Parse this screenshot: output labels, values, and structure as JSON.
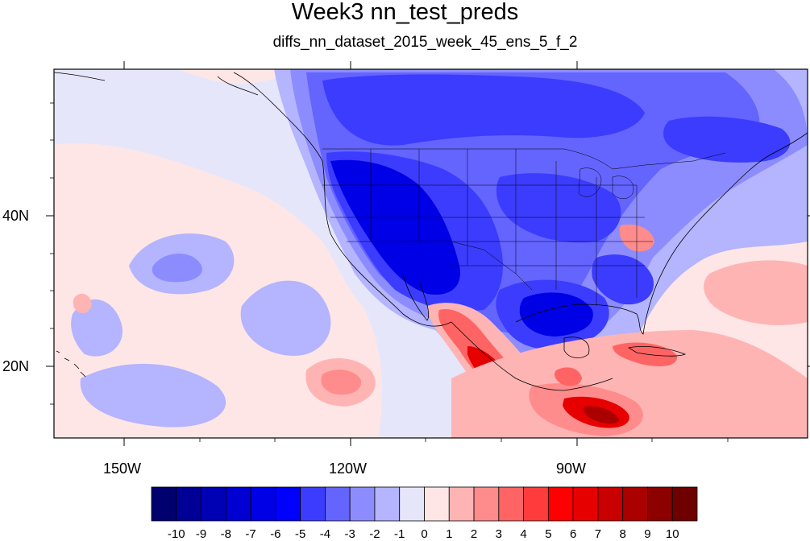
{
  "title": "Week3 nn_test_preds",
  "subtitle": "diffs_nn_dataset_2015_week_45_ens_5_f_2",
  "map": {
    "lon_labels": [
      "150W",
      "120W",
      "90W"
    ],
    "lat_labels": [
      "40N",
      "20N"
    ],
    "projection": "cylindrical equidistant",
    "features": [
      "coastlines",
      "US state boundaries",
      "country borders",
      "Great Lakes"
    ]
  },
  "colorbar": {
    "levels": [
      "-10",
      "-9",
      "-8",
      "-7",
      "-6",
      "-5",
      "-4",
      "-3",
      "-2",
      "-1",
      "0",
      "1",
      "2",
      "3",
      "4",
      "5",
      "6",
      "7",
      "8",
      "9",
      "10"
    ],
    "colors": [
      "#00006e",
      "#000096",
      "#0000b4",
      "#0000d2",
      "#0000e6",
      "#0000ff",
      "#3c3cff",
      "#6464ff",
      "#8c8cff",
      "#b4b4ff",
      "#e6e6fa",
      "#ffe6e6",
      "#ffb4b4",
      "#ff8c8c",
      "#ff6464",
      "#ff3c3c",
      "#ff0000",
      "#e60000",
      "#c80000",
      "#aa0000",
      "#8c0000",
      "#6e0000"
    ]
  },
  "field_colors": {
    "background": "#e6e6fa",
    "light_red": "#ffe6e6",
    "mid_red": "#ffb4b4",
    "light_blue": "#b4b4ff",
    "mid_blue": "#8c8cff",
    "blue": "#6464ff",
    "dark_blue": "#3c3cff",
    "deep_blue": "#0000e6",
    "red": "#ff6464",
    "dark_red": "#e60000",
    "deep_red": "#aa0000"
  }
}
